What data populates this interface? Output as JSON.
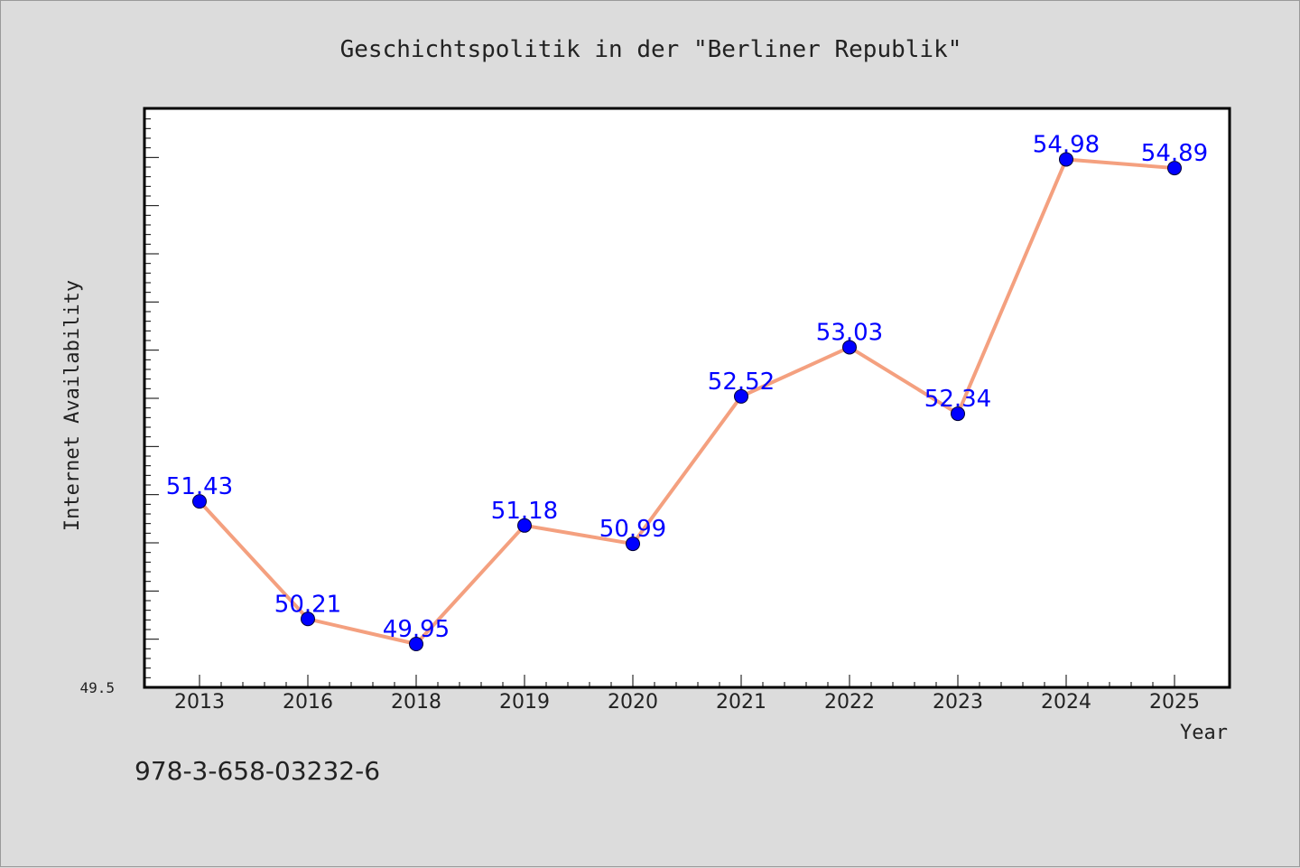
{
  "chart_data": {
    "type": "line",
    "title": "Geschichtspolitik in der \"Berliner Republik\"",
    "xlabel": "Year",
    "ylabel": "Internet Availability",
    "categories": [
      "2013",
      "2016",
      "2018",
      "2019",
      "2020",
      "2021",
      "2022",
      "2023",
      "2024",
      "2025"
    ],
    "series": [
      {
        "values": [
          51.43,
          50.21,
          49.95,
          51.18,
          50.99,
          52.52,
          53.03,
          52.34,
          54.98,
          54.89
        ],
        "labels": [
          "51.43",
          "50.21",
          "49.95",
          "51.18",
          "50.99",
          "52.52",
          "53.03",
          "52.34",
          "54.98",
          "54.89"
        ],
        "line_color": "#f4a07f",
        "marker_color": "#0000ff",
        "label_color": "#0000ff"
      }
    ],
    "ylim": [
      49.5,
      55.5
    ],
    "y_tick_label": "49.5",
    "grid": false,
    "legend": "none"
  },
  "footer": {
    "isbn": "978-3-658-03232-6"
  }
}
